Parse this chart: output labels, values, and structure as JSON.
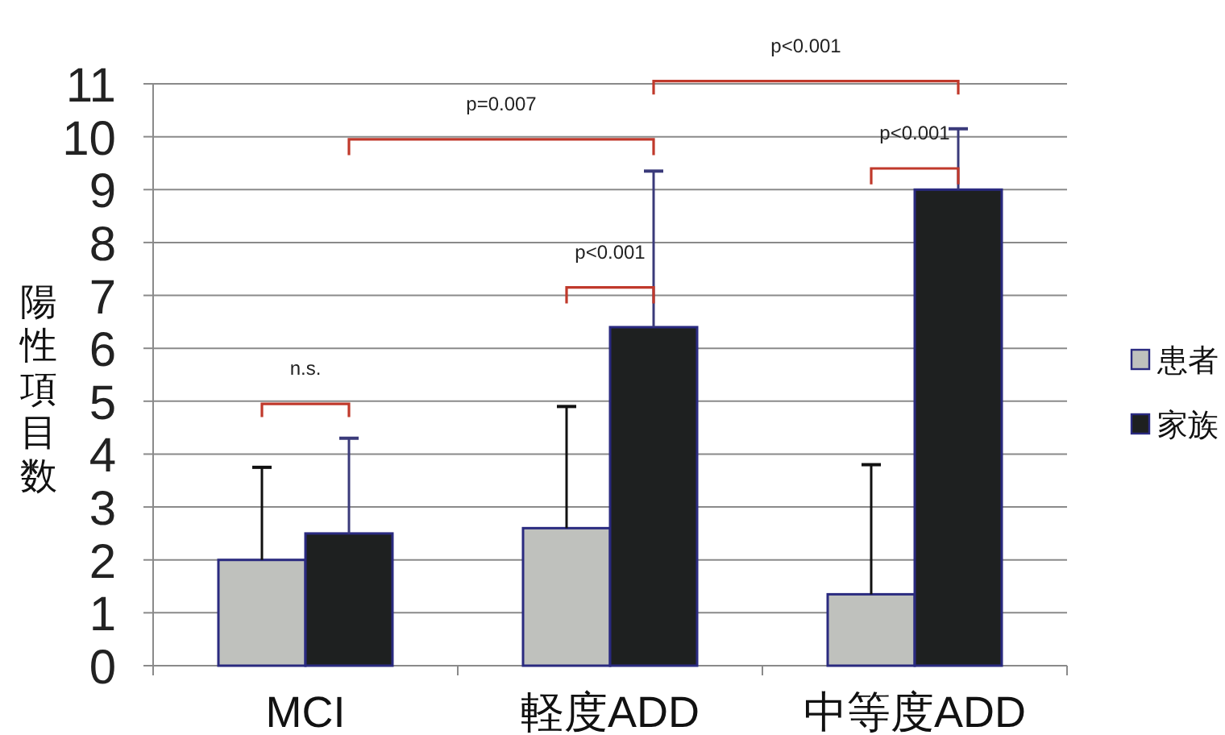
{
  "chart_data": {
    "type": "bar",
    "ylabel": "陽性項目数",
    "categories": [
      "MCI",
      "軽度ADD",
      "中等度ADD"
    ],
    "series": [
      {
        "name": "患者",
        "color": "#bfc1bd",
        "values": [
          2.0,
          2.6,
          1.35
        ],
        "errors": [
          [
            2.0,
            3.75
          ],
          [
            2.6,
            4.9
          ],
          [
            1.35,
            3.8
          ]
        ]
      },
      {
        "name": "家族",
        "color": "#1e2020",
        "values": [
          2.5,
          6.4,
          9.0
        ],
        "errors": [
          [
            2.5,
            4.3
          ],
          [
            6.4,
            9.35
          ],
          [
            9.0,
            10.15
          ]
        ]
      }
    ],
    "ylim": [
      0,
      11
    ],
    "yticks": [
      0,
      1,
      2,
      3,
      4,
      5,
      6,
      7,
      8,
      9,
      10,
      11
    ],
    "grid": "y",
    "legend": "right",
    "annotations": [
      "n.s.",
      "p=0.007",
      "p<0.001",
      "p<0.001",
      "p<0.001"
    ]
  }
}
